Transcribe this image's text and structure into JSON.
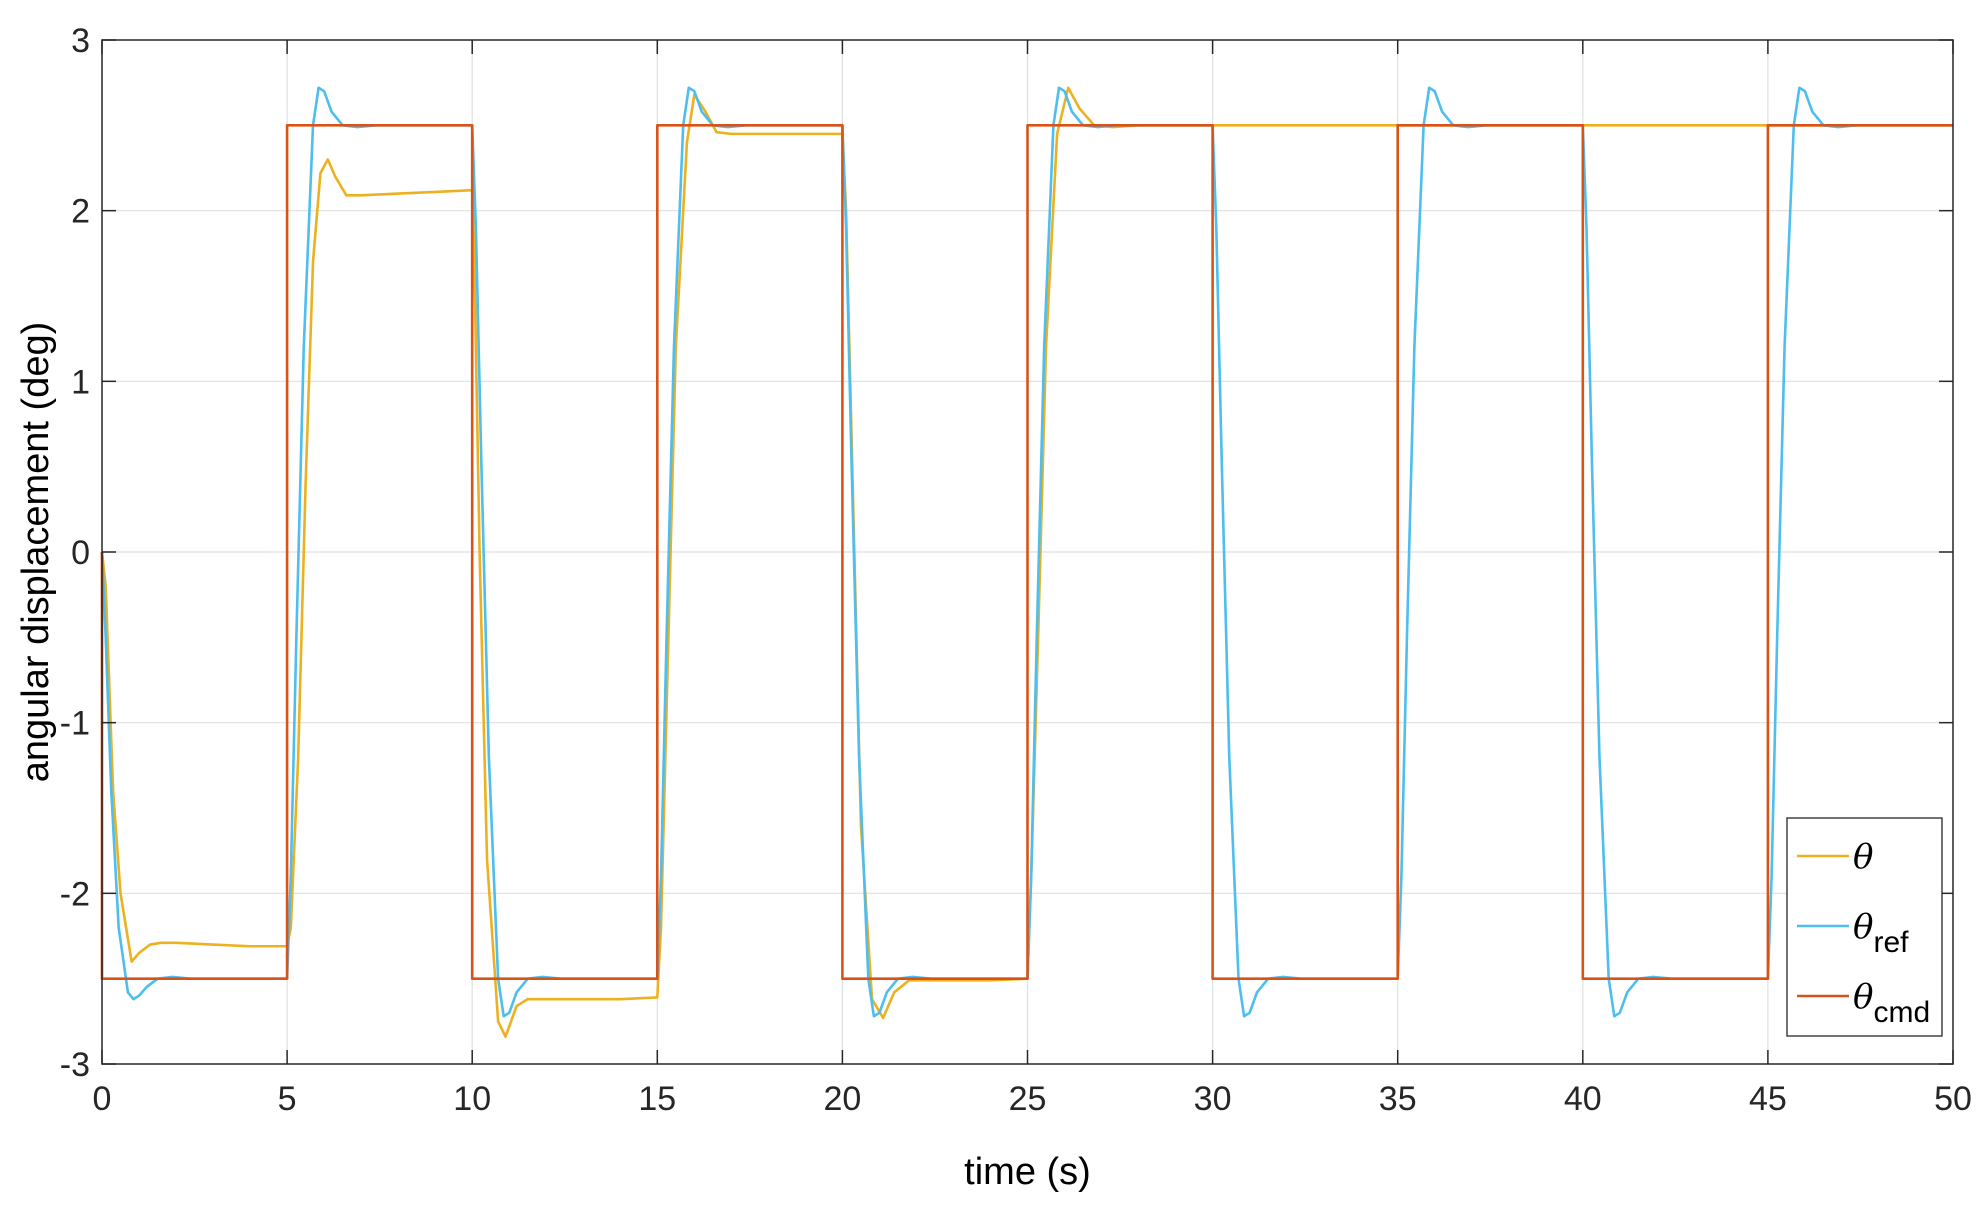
{
  "chart_data": {
    "type": "line",
    "title": "",
    "xlabel": "time (s)",
    "ylabel": "angular displacement (deg)",
    "xlim": [
      0,
      50
    ],
    "ylim": [
      -3,
      3
    ],
    "xticks": [
      0,
      5,
      10,
      15,
      20,
      25,
      30,
      35,
      40,
      45,
      50
    ],
    "yticks": [
      -3,
      -2,
      -1,
      0,
      1,
      2,
      3
    ],
    "xtick_labels": [
      "0",
      "5",
      "10",
      "15",
      "20",
      "25",
      "30",
      "35",
      "40",
      "45",
      "50"
    ],
    "ytick_labels": [
      "-3",
      "-2",
      "-1",
      "0",
      "1",
      "2",
      "3"
    ],
    "grid": true,
    "legend_position": "bottom-right",
    "series": [
      {
        "name": "θ",
        "legend_symbol": "θ",
        "legend_subscript": "",
        "color": "#EDB120",
        "x": [
          0,
          0.1,
          0.2,
          0.3,
          0.5,
          0.8,
          1.0,
          1.3,
          1.6,
          2.0,
          3.0,
          4.0,
          5.0,
          5.1,
          5.3,
          5.5,
          5.7,
          5.9,
          6.1,
          6.3,
          6.6,
          7.0,
          8.0,
          9.0,
          10.0,
          10.05,
          10.2,
          10.4,
          10.7,
          10.9,
          11.2,
          11.5,
          12.0,
          13.0,
          14.0,
          15.0,
          15.1,
          15.3,
          15.5,
          15.8,
          16.0,
          16.3,
          16.6,
          17.0,
          18.0,
          19.0,
          20.0,
          20.1,
          20.3,
          20.5,
          20.8,
          21.1,
          21.4,
          21.8,
          22.3,
          23.0,
          24.0,
          25.0,
          25.1,
          25.3,
          25.5,
          25.8,
          26.1,
          26.4,
          26.8,
          27.3,
          28.0,
          29.0,
          30.0,
          35.0,
          40.0,
          45.0,
          50.0
        ],
        "values": [
          0,
          -0.2,
          -0.8,
          -1.4,
          -2.0,
          -2.4,
          -2.35,
          -2.3,
          -2.29,
          -2.29,
          -2.3,
          -2.31,
          -2.31,
          -2.2,
          -1.2,
          0.4,
          1.7,
          2.22,
          2.3,
          2.2,
          2.09,
          2.09,
          2.1,
          2.11,
          2.12,
          1.8,
          0.0,
          -1.8,
          -2.75,
          -2.84,
          -2.66,
          -2.62,
          -2.62,
          -2.62,
          -2.62,
          -2.61,
          -2.2,
          -0.5,
          1.2,
          2.4,
          2.68,
          2.58,
          2.46,
          2.45,
          2.45,
          2.45,
          2.45,
          2.0,
          0.2,
          -1.6,
          -2.62,
          -2.73,
          -2.58,
          -2.51,
          -2.51,
          -2.51,
          -2.51,
          -2.5,
          -1.9,
          -0.4,
          1.2,
          2.45,
          2.72,
          2.6,
          2.5,
          2.49,
          2.5,
          2.5,
          2.5,
          2.5,
          2.5,
          2.5,
          2.5
        ]
      },
      {
        "name": "θref",
        "legend_symbol": "θ",
        "legend_subscript": "ref",
        "color": "#4DBEEE",
        "x": [
          0,
          0.1,
          0.25,
          0.45,
          0.7,
          0.85,
          1.0,
          1.2,
          1.5,
          1.9,
          2.4,
          3.0,
          5.0,
          5.1,
          5.25,
          5.45,
          5.7,
          5.85,
          6.0,
          6.2,
          6.5,
          6.9,
          7.4,
          8.0,
          10.0,
          10.1,
          10.25,
          10.45,
          10.7,
          10.85,
          11.0,
          11.2,
          11.5,
          11.9,
          12.4,
          13.0,
          15.0,
          15.1,
          15.25,
          15.45,
          15.7,
          15.85,
          16.0,
          16.2,
          16.5,
          16.9,
          17.4,
          18.0,
          20.0,
          20.1,
          20.25,
          20.45,
          20.7,
          20.85,
          21.0,
          21.2,
          21.5,
          21.9,
          22.4,
          23.0,
          25.0,
          25.1,
          25.25,
          25.45,
          25.7,
          25.85,
          26.0,
          26.2,
          26.5,
          26.9,
          27.4,
          28.0,
          30.0,
          30.1,
          30.25,
          30.45,
          30.7,
          30.85,
          31.0,
          31.2,
          31.5,
          31.9,
          32.4,
          33.0,
          35.0,
          35.1,
          35.25,
          35.45,
          35.7,
          35.85,
          36.0,
          36.2,
          36.5,
          36.9,
          37.4,
          38.0,
          40.0,
          40.1,
          40.25,
          40.45,
          40.7,
          40.85,
          41.0,
          41.2,
          41.5,
          41.9,
          42.4,
          43.0,
          45.0,
          45.1,
          45.25,
          45.45,
          45.7,
          45.85,
          46.0,
          46.2,
          46.5,
          46.9,
          47.4,
          48.0,
          50.0
        ],
        "values": [
          0,
          -0.5,
          -1.4,
          -2.2,
          -2.58,
          -2.62,
          -2.6,
          -2.55,
          -2.5,
          -2.49,
          -2.5,
          -2.5,
          -2.5,
          -1.9,
          -0.5,
          1.2,
          2.5,
          2.72,
          2.7,
          2.58,
          2.5,
          2.49,
          2.5,
          2.5,
          2.5,
          1.9,
          0.5,
          -1.2,
          -2.5,
          -2.72,
          -2.7,
          -2.58,
          -2.5,
          -2.49,
          -2.5,
          -2.5,
          -2.5,
          -1.9,
          -0.5,
          1.2,
          2.5,
          2.72,
          2.7,
          2.58,
          2.5,
          2.49,
          2.5,
          2.5,
          2.5,
          1.9,
          0.5,
          -1.2,
          -2.5,
          -2.72,
          -2.7,
          -2.58,
          -2.5,
          -2.49,
          -2.5,
          -2.5,
          -2.5,
          -1.9,
          -0.5,
          1.2,
          2.5,
          2.72,
          2.7,
          2.58,
          2.5,
          2.49,
          2.5,
          2.5,
          2.5,
          1.9,
          0.5,
          -1.2,
          -2.5,
          -2.72,
          -2.7,
          -2.58,
          -2.5,
          -2.49,
          -2.5,
          -2.5,
          -2.5,
          -1.9,
          -0.5,
          1.2,
          2.5,
          2.72,
          2.7,
          2.58,
          2.5,
          2.49,
          2.5,
          2.5,
          2.5,
          1.9,
          0.5,
          -1.2,
          -2.5,
          -2.72,
          -2.7,
          -2.58,
          -2.5,
          -2.49,
          -2.5,
          -2.5,
          -2.5,
          -1.9,
          -0.5,
          1.2,
          2.5,
          2.72,
          2.7,
          2.58,
          2.5,
          2.49,
          2.5,
          2.5,
          2.5
        ]
      },
      {
        "name": "θcmd",
        "legend_symbol": "θ",
        "legend_subscript": "cmd",
        "color": "#D95319",
        "x": [
          0,
          0,
          5,
          5,
          10,
          10,
          15,
          15,
          20,
          20,
          25,
          25,
          30,
          30,
          35,
          35,
          40,
          40,
          45,
          45,
          50
        ],
        "values": [
          0,
          -2.5,
          -2.5,
          2.5,
          2.5,
          -2.5,
          -2.5,
          2.5,
          2.5,
          -2.5,
          -2.5,
          2.5,
          2.5,
          -2.5,
          -2.5,
          2.5,
          2.5,
          -2.5,
          -2.5,
          2.5,
          2.5
        ]
      }
    ]
  }
}
